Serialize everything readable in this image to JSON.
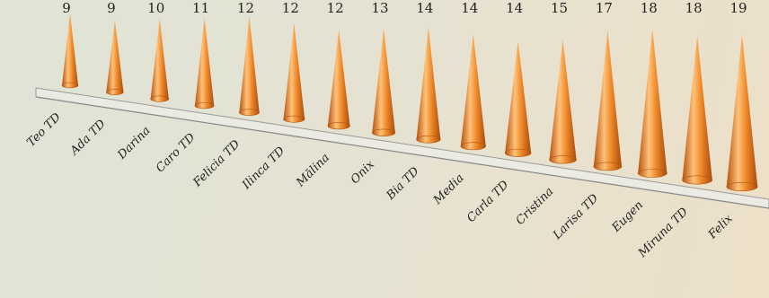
{
  "chart_data": {
    "type": "bar",
    "style": "3d-cone",
    "categories": [
      "Teo TD",
      "Ada TD",
      "Darina",
      "Caro TD",
      "Felicia TD",
      "Ilinca TD",
      "Mălina",
      "Onix",
      "Bia TD",
      "Media",
      "Carla TD",
      "Cristina",
      "Larisa TD",
      "Eugen",
      "Miruna TD",
      "Felix"
    ],
    "values": [
      9,
      9,
      10,
      11,
      12,
      12,
      12,
      13,
      14,
      14,
      14,
      15,
      17,
      18,
      18,
      19
    ],
    "title": "",
    "xlabel": "",
    "ylabel": "",
    "grid": false,
    "legend": "none",
    "colors": {
      "cone": "#f08a2a",
      "cone_dark": "#b8520e",
      "cone_light": "#ffc27a"
    }
  }
}
